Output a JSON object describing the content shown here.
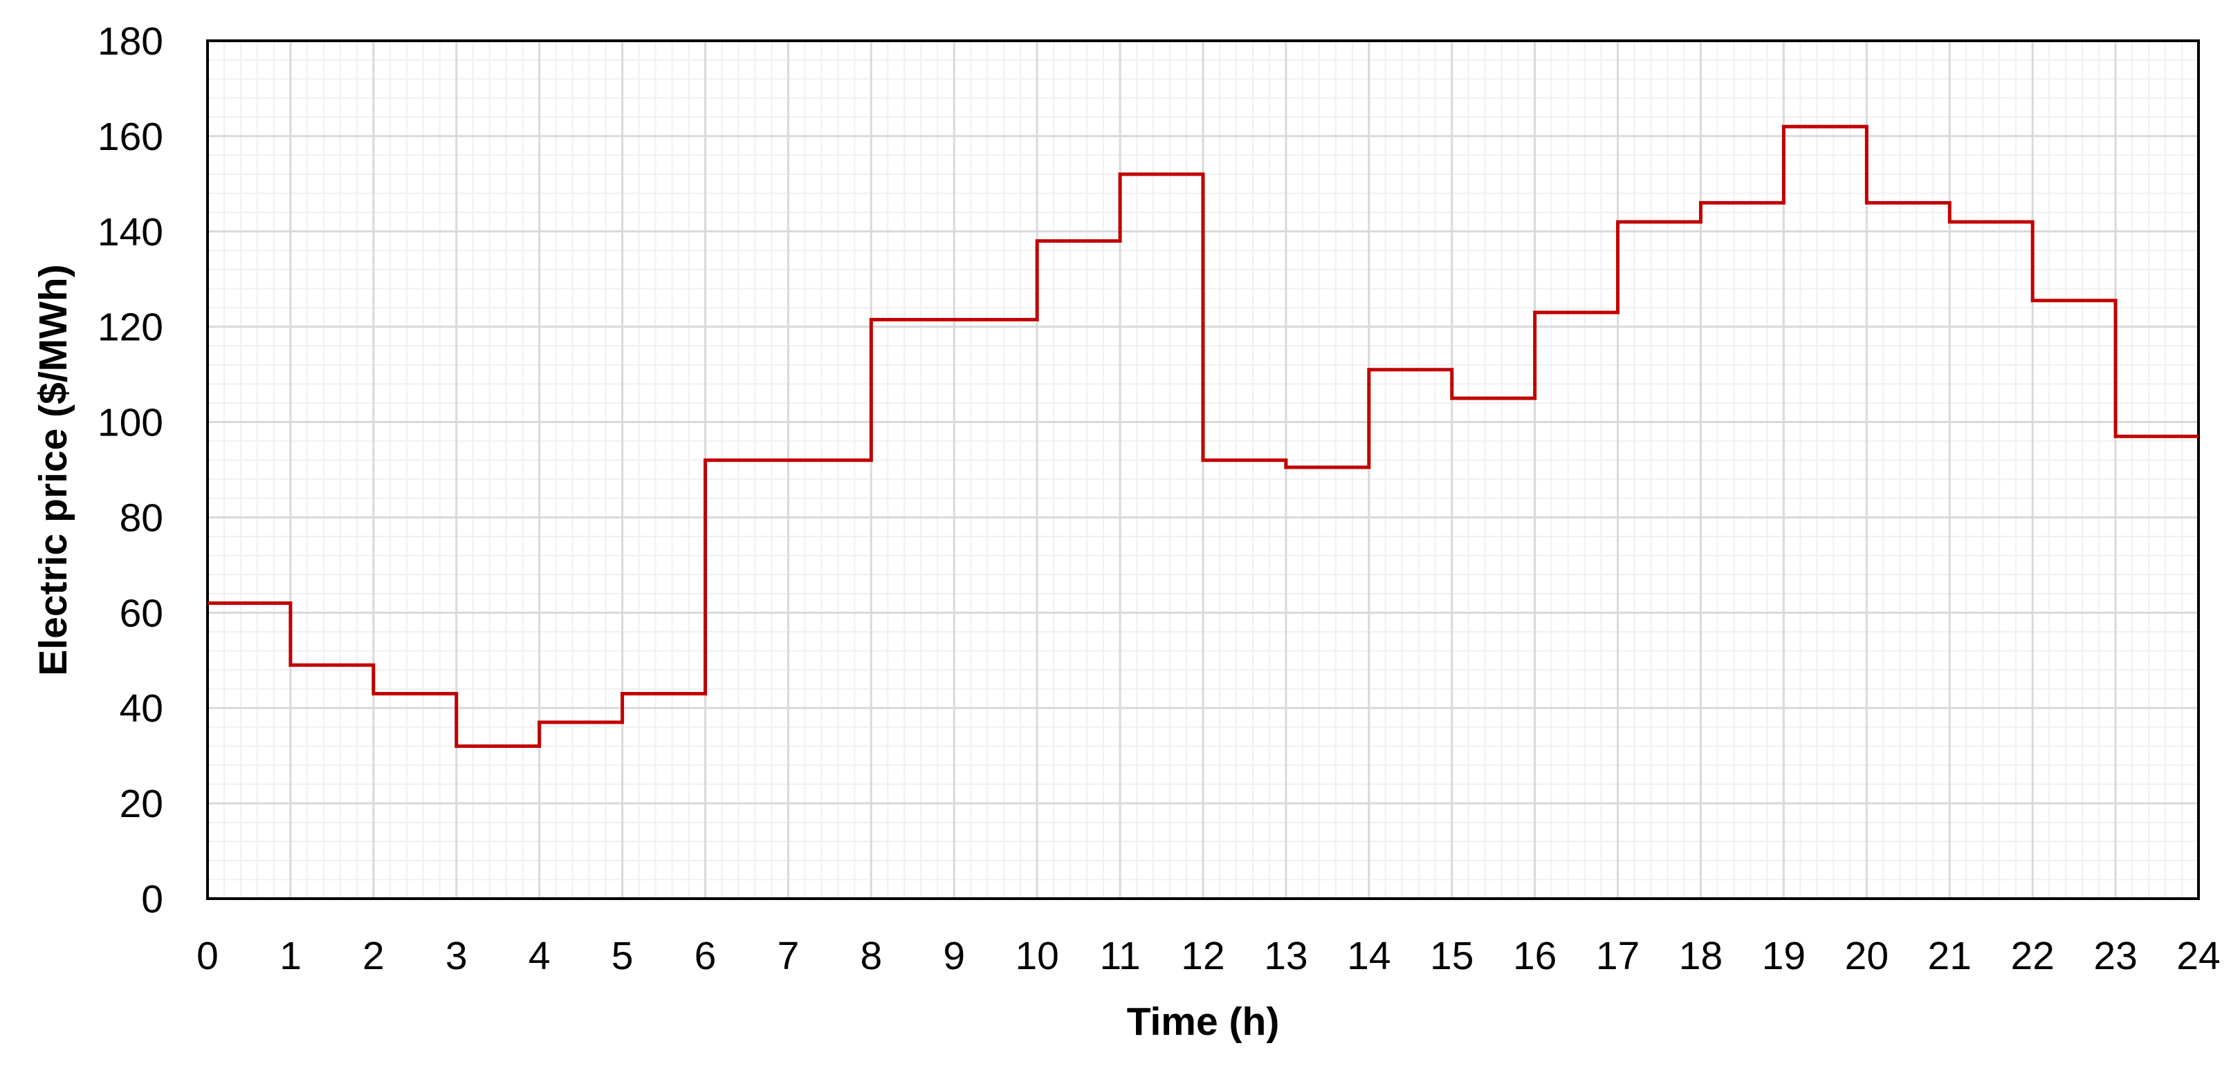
{
  "chart_data": {
    "type": "line",
    "step": "post",
    "title": "",
    "xlabel": "Time (h)",
    "ylabel": "Electric price ($/MWh)",
    "xlim": [
      0,
      24
    ],
    "ylim": [
      0,
      180
    ],
    "x_ticks": [
      0,
      1,
      2,
      3,
      4,
      5,
      6,
      7,
      8,
      9,
      10,
      11,
      12,
      13,
      14,
      15,
      16,
      17,
      18,
      19,
      20,
      21,
      22,
      23,
      24
    ],
    "y_ticks": [
      0,
      20,
      40,
      60,
      80,
      100,
      120,
      140,
      160,
      180
    ],
    "grid": true,
    "legend": "none",
    "colors": {
      "line": "#c00000",
      "major_grid": "#d9d9d9",
      "minor_grid": "#f0f0f0",
      "axis": "#000000"
    },
    "series": [
      {
        "x": [
          0,
          1,
          2,
          3,
          4,
          5,
          6,
          7,
          8,
          9,
          10,
          11,
          12,
          13,
          14,
          15,
          16,
          17,
          18,
          19,
          20,
          21,
          22,
          23
        ],
        "values": [
          62,
          49,
          43,
          32,
          37,
          43,
          92,
          92,
          121.5,
          121.5,
          138,
          152,
          92,
          90.5,
          111,
          105,
          123,
          142,
          146,
          162,
          146,
          142,
          125.5,
          97
        ]
      }
    ]
  }
}
